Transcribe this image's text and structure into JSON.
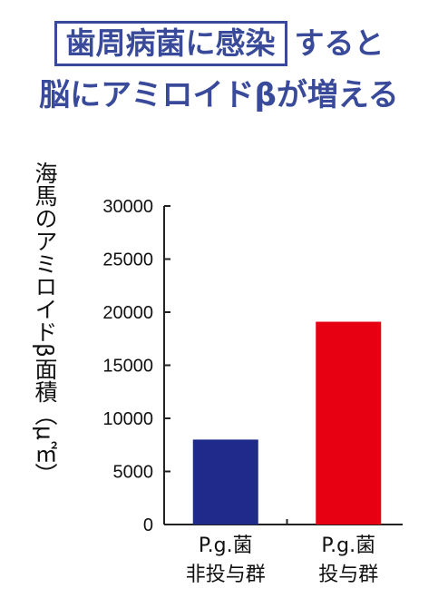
{
  "headline": {
    "boxed_text": "歯周病菌に感染",
    "line1_rest": "すると",
    "line2": "脳にアミロイドβが増える"
  },
  "colors": {
    "title": "#3a4a9a",
    "bar_non": "#1f2a8a",
    "bar_inf": "#e60012"
  },
  "chart_data": {
    "type": "bar",
    "title": "",
    "ylabel": "海馬のアミロイドβ面積（μ㎡）",
    "xlabel": "",
    "ylim": [
      0,
      30000
    ],
    "yticks": [
      0,
      5000,
      10000,
      15000,
      20000,
      25000,
      30000
    ],
    "categories": [
      {
        "line1": "P.g.菌",
        "line2": "非投与群"
      },
      {
        "line1": "P.g.菌",
        "line2": "投与群"
      }
    ],
    "values": [
      8000,
      19100
    ],
    "grid": false
  }
}
